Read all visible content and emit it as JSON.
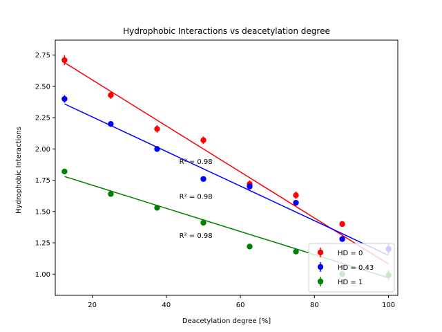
{
  "chart_data": {
    "type": "scatter",
    "title": "Hydrophobic Interactions vs deacetylation degree",
    "xlabel": "Deacetylation degree [%]",
    "ylabel": "Hydrophobic Interactions",
    "xlim": [
      10,
      102.5
    ],
    "ylim": [
      0.83,
      2.87
    ],
    "xticks": [
      20,
      40,
      60,
      80,
      100
    ],
    "xtick_labels": [
      "20",
      "40",
      "60",
      "80",
      "100"
    ],
    "yticks": [
      1.0,
      1.25,
      1.5,
      1.75,
      2.0,
      2.25,
      2.5,
      2.75
    ],
    "ytick_labels": [
      "1.00",
      "1.25",
      "1.50",
      "1.75",
      "2.00",
      "2.25",
      "2.50",
      "2.75"
    ],
    "grid": false,
    "legend_position": "lower-right",
    "x": [
      12.5,
      25,
      37.5,
      50,
      62.5,
      75,
      87.5,
      100
    ],
    "series": [
      {
        "name": "HD = 0",
        "color": "#ff0000",
        "y": [
          2.71,
          2.43,
          2.16,
          2.07,
          1.72,
          1.63,
          1.4,
          1.2
        ],
        "err": [
          0.04,
          0.03,
          0.03,
          0.03,
          0.03,
          0.03,
          0.02,
          0.02
        ],
        "fit": [
          2.69,
          1.08
        ],
        "r2_label": "R² = 0.98",
        "r2_anchor": [
          43.5,
          1.88
        ]
      },
      {
        "name": "HD = 0.43",
        "color": "#0000ff",
        "y": [
          2.4,
          2.2,
          2.0,
          1.76,
          1.7,
          1.57,
          1.28,
          1.2
        ],
        "err": [
          0.03,
          0.02,
          0.015,
          0.015,
          0.015,
          0.015,
          0.015,
          0.04
        ],
        "fit": [
          2.36,
          1.15
        ],
        "r2_label": "R² = 0.98",
        "r2_anchor": [
          43.5,
          1.6
        ]
      },
      {
        "name": "HD = 1",
        "color": "#008000",
        "y": [
          1.82,
          1.64,
          1.53,
          1.41,
          1.22,
          1.18,
          1.0,
          0.99
        ],
        "err": [
          0.02,
          0.02,
          0.015,
          0.015,
          0.015,
          0.015,
          0.015,
          0.04
        ],
        "fit": [
          1.78,
          0.97
        ],
        "r2_label": "R² = 0.98",
        "r2_anchor": [
          43.5,
          1.29
        ]
      }
    ]
  }
}
